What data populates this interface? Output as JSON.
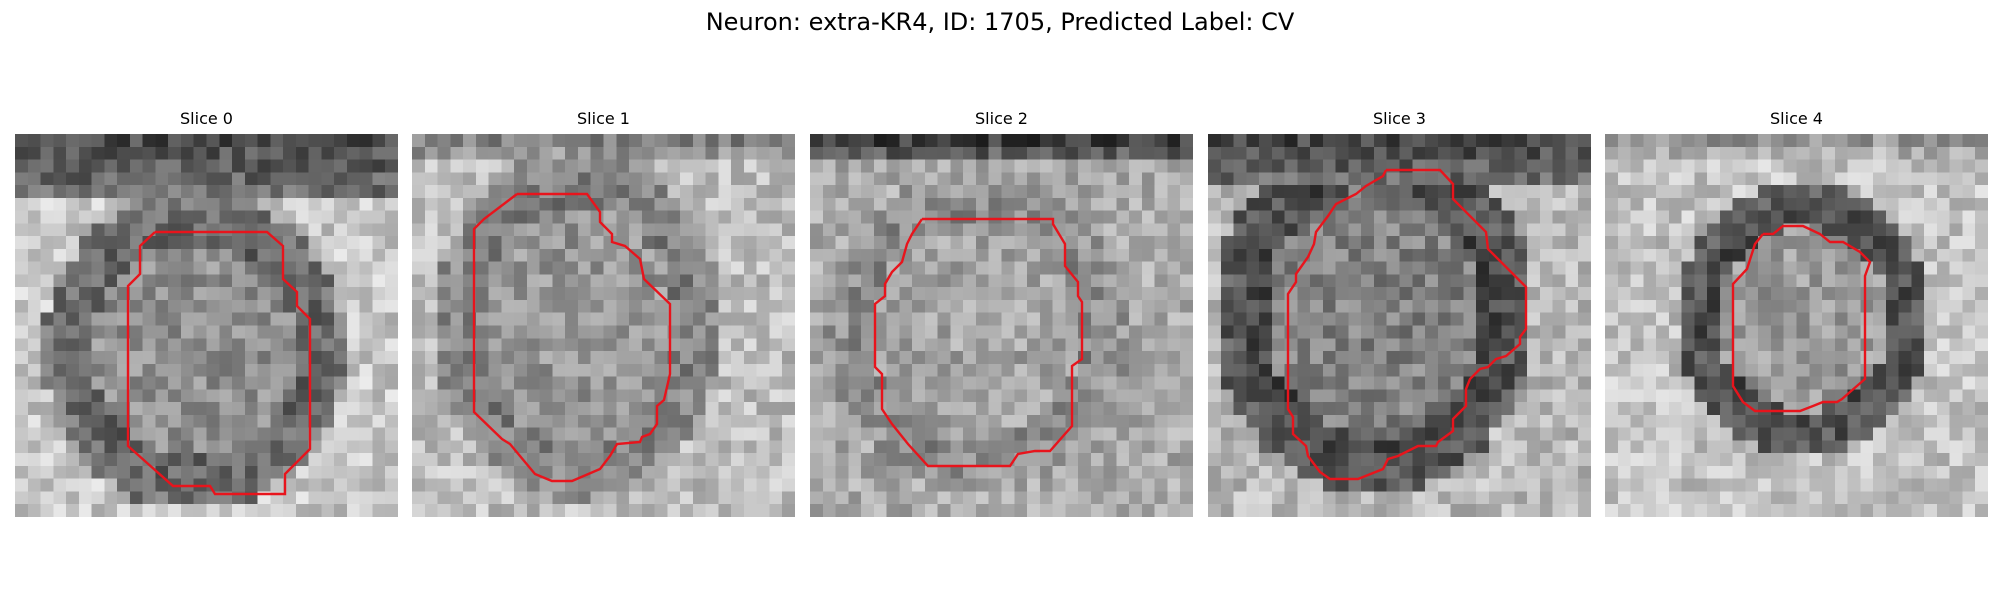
{
  "figure": {
    "title": "Neuron: extra-KR4, ID: 1705, Predicted Label: CV"
  },
  "panels": [
    {
      "title": "Slice 0"
    },
    {
      "title": "Slice 1"
    },
    {
      "title": "Slice 2"
    },
    {
      "title": "Slice 3"
    },
    {
      "title": "Slice 4"
    }
  ],
  "style": {
    "contour_color": "#e8141c"
  }
}
